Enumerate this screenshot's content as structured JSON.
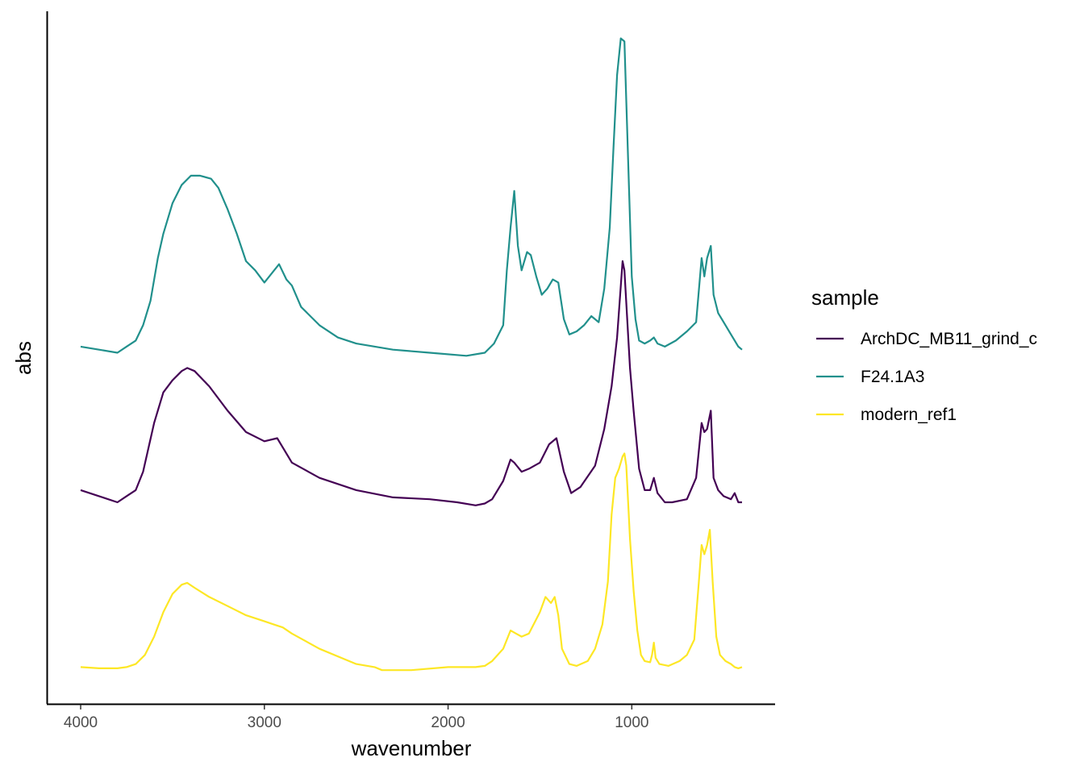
{
  "chart_data": {
    "type": "line",
    "xlabel": "wavenumber",
    "ylabel": "abs",
    "xlim": [
      4000,
      400
    ],
    "x_reversed": true,
    "x_ticks": [
      4000,
      3000,
      2000,
      1000
    ],
    "x_tick_labels": [
      "4000",
      "3000",
      "2000",
      "1000"
    ],
    "y_ticks_shown": false,
    "grid": false,
    "legend": {
      "title": "sample",
      "position": "right"
    },
    "series": [
      {
        "name": "ArchDC_MB11_grind_c",
        "color": "#440154",
        "points": [
          [
            4000,
            0.7
          ],
          [
            3900,
            0.69
          ],
          [
            3800,
            0.68
          ],
          [
            3750,
            0.69
          ],
          [
            3700,
            0.7
          ],
          [
            3660,
            0.73
          ],
          [
            3600,
            0.81
          ],
          [
            3550,
            0.86
          ],
          [
            3500,
            0.88
          ],
          [
            3450,
            0.895
          ],
          [
            3420,
            0.9
          ],
          [
            3380,
            0.895
          ],
          [
            3300,
            0.87
          ],
          [
            3200,
            0.83
          ],
          [
            3100,
            0.795
          ],
          [
            3000,
            0.78
          ],
          [
            2930,
            0.785
          ],
          [
            2900,
            0.77
          ],
          [
            2850,
            0.745
          ],
          [
            2700,
            0.72
          ],
          [
            2500,
            0.7
          ],
          [
            2300,
            0.688
          ],
          [
            2100,
            0.685
          ],
          [
            1950,
            0.68
          ],
          [
            1850,
            0.675
          ],
          [
            1800,
            0.678
          ],
          [
            1760,
            0.685
          ],
          [
            1700,
            0.715
          ],
          [
            1660,
            0.75
          ],
          [
            1640,
            0.745
          ],
          [
            1600,
            0.73
          ],
          [
            1560,
            0.735
          ],
          [
            1500,
            0.745
          ],
          [
            1450,
            0.775
          ],
          [
            1410,
            0.785
          ],
          [
            1370,
            0.73
          ],
          [
            1330,
            0.695
          ],
          [
            1280,
            0.705
          ],
          [
            1200,
            0.74
          ],
          [
            1150,
            0.8
          ],
          [
            1110,
            0.87
          ],
          [
            1080,
            0.95
          ],
          [
            1050,
            1.075
          ],
          [
            1040,
            1.06
          ],
          [
            1010,
            0.9
          ],
          [
            990,
            0.83
          ],
          [
            960,
            0.735
          ],
          [
            930,
            0.7
          ],
          [
            900,
            0.7
          ],
          [
            880,
            0.72
          ],
          [
            860,
            0.695
          ],
          [
            820,
            0.68
          ],
          [
            780,
            0.68
          ],
          [
            700,
            0.685
          ],
          [
            650,
            0.72
          ],
          [
            620,
            0.81
          ],
          [
            605,
            0.795
          ],
          [
            590,
            0.8
          ],
          [
            570,
            0.83
          ],
          [
            555,
            0.72
          ],
          [
            530,
            0.7
          ],
          [
            500,
            0.69
          ],
          [
            460,
            0.685
          ],
          [
            440,
            0.695
          ],
          [
            420,
            0.68
          ],
          [
            400,
            0.68
          ]
        ]
      },
      {
        "name": "F24.1A3",
        "color": "#21908C",
        "points": [
          [
            4000,
            0.935
          ],
          [
            3900,
            0.93
          ],
          [
            3800,
            0.925
          ],
          [
            3750,
            0.935
          ],
          [
            3700,
            0.945
          ],
          [
            3660,
            0.97
          ],
          [
            3620,
            1.01
          ],
          [
            3580,
            1.08
          ],
          [
            3550,
            1.12
          ],
          [
            3500,
            1.17
          ],
          [
            3450,
            1.2
          ],
          [
            3400,
            1.215
          ],
          [
            3350,
            1.215
          ],
          [
            3290,
            1.21
          ],
          [
            3250,
            1.195
          ],
          [
            3200,
            1.16
          ],
          [
            3150,
            1.12
          ],
          [
            3100,
            1.075
          ],
          [
            3050,
            1.06
          ],
          [
            3000,
            1.04
          ],
          [
            2960,
            1.055
          ],
          [
            2920,
            1.07
          ],
          [
            2880,
            1.045
          ],
          [
            2850,
            1.035
          ],
          [
            2800,
            1.0
          ],
          [
            2700,
            0.97
          ],
          [
            2600,
            0.95
          ],
          [
            2500,
            0.94
          ],
          [
            2300,
            0.93
          ],
          [
            2100,
            0.925
          ],
          [
            1900,
            0.92
          ],
          [
            1800,
            0.925
          ],
          [
            1750,
            0.94
          ],
          [
            1700,
            0.97
          ],
          [
            1680,
            1.06
          ],
          [
            1660,
            1.13
          ],
          [
            1640,
            1.19
          ],
          [
            1620,
            1.1
          ],
          [
            1600,
            1.06
          ],
          [
            1570,
            1.09
          ],
          [
            1550,
            1.085
          ],
          [
            1520,
            1.05
          ],
          [
            1490,
            1.02
          ],
          [
            1460,
            1.03
          ],
          [
            1430,
            1.045
          ],
          [
            1400,
            1.04
          ],
          [
            1370,
            0.98
          ],
          [
            1340,
            0.955
          ],
          [
            1300,
            0.96
          ],
          [
            1260,
            0.97
          ],
          [
            1220,
            0.985
          ],
          [
            1180,
            0.975
          ],
          [
            1150,
            1.03
          ],
          [
            1120,
            1.13
          ],
          [
            1100,
            1.26
          ],
          [
            1080,
            1.38
          ],
          [
            1060,
            1.44
          ],
          [
            1040,
            1.435
          ],
          [
            1020,
            1.24
          ],
          [
            1000,
            1.05
          ],
          [
            980,
            0.98
          ],
          [
            960,
            0.945
          ],
          [
            930,
            0.94
          ],
          [
            900,
            0.945
          ],
          [
            880,
            0.95
          ],
          [
            860,
            0.94
          ],
          [
            820,
            0.935
          ],
          [
            760,
            0.945
          ],
          [
            700,
            0.96
          ],
          [
            650,
            0.975
          ],
          [
            620,
            1.08
          ],
          [
            605,
            1.05
          ],
          [
            590,
            1.08
          ],
          [
            570,
            1.1
          ],
          [
            555,
            1.02
          ],
          [
            530,
            0.99
          ],
          [
            500,
            0.975
          ],
          [
            460,
            0.955
          ],
          [
            440,
            0.945
          ],
          [
            420,
            0.935
          ],
          [
            400,
            0.93
          ]
        ]
      },
      {
        "name": "modern_ref1",
        "color": "#FDE725",
        "points": [
          [
            4000,
            0.41
          ],
          [
            3900,
            0.408
          ],
          [
            3800,
            0.408
          ],
          [
            3750,
            0.41
          ],
          [
            3700,
            0.415
          ],
          [
            3650,
            0.43
          ],
          [
            3600,
            0.46
          ],
          [
            3550,
            0.5
          ],
          [
            3500,
            0.53
          ],
          [
            3450,
            0.545
          ],
          [
            3420,
            0.548
          ],
          [
            3380,
            0.54
          ],
          [
            3300,
            0.525
          ],
          [
            3200,
            0.51
          ],
          [
            3100,
            0.495
          ],
          [
            3000,
            0.485
          ],
          [
            2950,
            0.48
          ],
          [
            2900,
            0.475
          ],
          [
            2850,
            0.465
          ],
          [
            2700,
            0.44
          ],
          [
            2500,
            0.415
          ],
          [
            2400,
            0.41
          ],
          [
            2360,
            0.405
          ],
          [
            2300,
            0.405
          ],
          [
            2200,
            0.405
          ],
          [
            2000,
            0.41
          ],
          [
            1850,
            0.41
          ],
          [
            1800,
            0.412
          ],
          [
            1760,
            0.42
          ],
          [
            1700,
            0.44
          ],
          [
            1660,
            0.47
          ],
          [
            1630,
            0.465
          ],
          [
            1600,
            0.46
          ],
          [
            1560,
            0.465
          ],
          [
            1500,
            0.5
          ],
          [
            1470,
            0.525
          ],
          [
            1440,
            0.515
          ],
          [
            1420,
            0.525
          ],
          [
            1400,
            0.495
          ],
          [
            1380,
            0.44
          ],
          [
            1340,
            0.415
          ],
          [
            1300,
            0.412
          ],
          [
            1240,
            0.42
          ],
          [
            1200,
            0.44
          ],
          [
            1160,
            0.48
          ],
          [
            1130,
            0.55
          ],
          [
            1110,
            0.66
          ],
          [
            1090,
            0.72
          ],
          [
            1070,
            0.735
          ],
          [
            1050,
            0.755
          ],
          [
            1040,
            0.76
          ],
          [
            1030,
            0.74
          ],
          [
            1010,
            0.62
          ],
          [
            990,
            0.535
          ],
          [
            970,
            0.47
          ],
          [
            950,
            0.43
          ],
          [
            930,
            0.42
          ],
          [
            900,
            0.418
          ],
          [
            890,
            0.43
          ],
          [
            880,
            0.45
          ],
          [
            870,
            0.425
          ],
          [
            850,
            0.415
          ],
          [
            800,
            0.412
          ],
          [
            740,
            0.42
          ],
          [
            700,
            0.43
          ],
          [
            660,
            0.455
          ],
          [
            635,
            0.55
          ],
          [
            620,
            0.61
          ],
          [
            605,
            0.595
          ],
          [
            590,
            0.61
          ],
          [
            575,
            0.635
          ],
          [
            560,
            0.55
          ],
          [
            540,
            0.46
          ],
          [
            520,
            0.43
          ],
          [
            490,
            0.42
          ],
          [
            460,
            0.415
          ],
          [
            440,
            0.41
          ],
          [
            420,
            0.408
          ],
          [
            400,
            0.41
          ]
        ]
      }
    ]
  }
}
